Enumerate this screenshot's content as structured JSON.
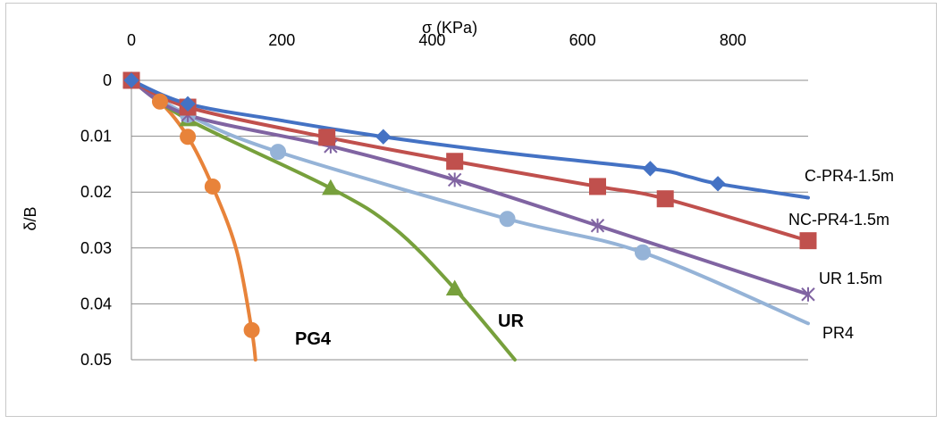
{
  "chart_data": {
    "type": "line",
    "xlabel": "σ (KPa)",
    "ylabel": "δ/B",
    "xlim": [
      0,
      900
    ],
    "ylim": [
      0,
      0.05
    ],
    "y_inverted": true,
    "x_axis_position": "top",
    "grid": "horizontal",
    "x_ticks": [
      "0",
      "200",
      "400",
      "600",
      "800"
    ],
    "x_tick_values": [
      0,
      200,
      400,
      600,
      800
    ],
    "y_ticks": [
      "0",
      "0.01",
      "0.02",
      "0.03",
      "0.04",
      "0.05"
    ],
    "y_tick_values": [
      0,
      0.01,
      0.02,
      0.03,
      0.04,
      0.05
    ],
    "series": [
      {
        "name": "C-PR4-1.5m",
        "color": "#4472C4",
        "marker": "diamond",
        "points": [
          [
            0,
            0
          ],
          [
            75,
            0.0042
          ],
          [
            335,
            0.0101
          ],
          [
            690,
            0.0158
          ],
          [
            780,
            0.0185
          ]
        ],
        "curve": [
          [
            0,
            0
          ],
          [
            75,
            0.0042
          ],
          [
            200,
            0.0072
          ],
          [
            335,
            0.0101
          ],
          [
            500,
            0.013
          ],
          [
            690,
            0.0158
          ],
          [
            740,
            0.0172
          ],
          [
            780,
            0.0185
          ],
          [
            900,
            0.021
          ]
        ]
      },
      {
        "name": "NC-PR4-1.5m",
        "color": "#C0504D",
        "marker": "square",
        "points": [
          [
            0,
            0
          ],
          [
            75,
            0.0048
          ],
          [
            260,
            0.0102
          ],
          [
            430,
            0.0145
          ],
          [
            620,
            0.019
          ],
          [
            710,
            0.0212
          ],
          [
            900,
            0.0287
          ]
        ],
        "curve": [
          [
            0,
            0
          ],
          [
            75,
            0.0048
          ],
          [
            260,
            0.0102
          ],
          [
            430,
            0.0145
          ],
          [
            620,
            0.019
          ],
          [
            710,
            0.0212
          ],
          [
            900,
            0.0287
          ]
        ]
      },
      {
        "name": "UR 1.5m",
        "color": "#8064A2",
        "marker": "star",
        "points": [
          [
            0,
            0
          ],
          [
            75,
            0.0062
          ],
          [
            265,
            0.0118
          ],
          [
            430,
            0.0178
          ],
          [
            620,
            0.026
          ],
          [
            900,
            0.0383
          ]
        ],
        "curve": [
          [
            0,
            0
          ],
          [
            75,
            0.0062
          ],
          [
            265,
            0.0118
          ],
          [
            430,
            0.0178
          ],
          [
            620,
            0.026
          ],
          [
            900,
            0.0383
          ]
        ]
      },
      {
        "name": "PR4",
        "color": "#95B3D7",
        "marker": "circle",
        "points": [
          [
            0,
            0
          ],
          [
            75,
            0.0062
          ],
          [
            195,
            0.0128
          ],
          [
            500,
            0.0248
          ],
          [
            680,
            0.0308
          ]
        ],
        "curve": [
          [
            0,
            0
          ],
          [
            75,
            0.0062
          ],
          [
            195,
            0.0128
          ],
          [
            500,
            0.0248
          ],
          [
            680,
            0.0308
          ],
          [
            900,
            0.0435
          ]
        ]
      },
      {
        "name": "UR",
        "color": "#77A03C",
        "marker": "triangle",
        "points": [
          [
            0,
            0
          ],
          [
            75,
            0.007
          ],
          [
            265,
            0.0193
          ],
          [
            430,
            0.0373
          ]
        ],
        "curve": [
          [
            0,
            0
          ],
          [
            75,
            0.007
          ],
          [
            265,
            0.0193
          ],
          [
            350,
            0.0265
          ],
          [
            430,
            0.0373
          ],
          [
            510,
            0.05
          ]
        ]
      },
      {
        "name": "PG4",
        "color": "#E8833A",
        "marker": "circle",
        "points": [
          [
            0,
            0
          ],
          [
            38,
            0.0038
          ],
          [
            75,
            0.0101
          ],
          [
            108,
            0.019
          ],
          [
            160,
            0.0447
          ]
        ],
        "curve": [
          [
            0,
            0
          ],
          [
            38,
            0.0038
          ],
          [
            75,
            0.0101
          ],
          [
            108,
            0.019
          ],
          [
            140,
            0.0305
          ],
          [
            160,
            0.0447
          ],
          [
            165,
            0.05
          ]
        ]
      }
    ]
  }
}
